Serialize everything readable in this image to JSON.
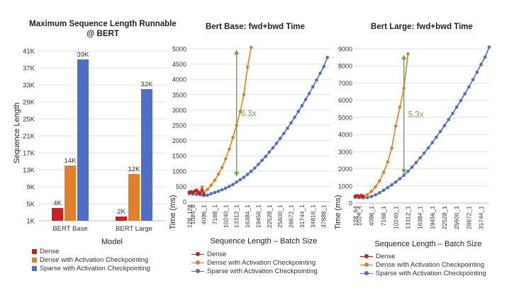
{
  "colors": {
    "dense": "#cc1f1f",
    "dense_ckpt": "#e0802b",
    "sparse_ckpt": "#4f6fc4",
    "speedup": "#6aa84f",
    "grid": "#e2e2e2",
    "text": "#333333"
  },
  "legend": {
    "dense": "Dense",
    "dense_ckpt": "Dense with Activation Checkpointing",
    "sparse_ckpt": "Sparse with Activation Checkpointing"
  },
  "chart_data": [
    {
      "type": "bar",
      "title": "Maximum Sequence Length Runnable @ BERT",
      "xlabel": "Model",
      "ylabel": "Sequence Length",
      "categories": [
        "BERT Base",
        "BERT Large"
      ],
      "ylim": [
        1,
        41
      ],
      "yticks": [
        1,
        5,
        9,
        13,
        17,
        21,
        25,
        29,
        33,
        37,
        41
      ],
      "ytick_labels": [
        "1K",
        "5K",
        "9K",
        "13K",
        "17K",
        "21K",
        "25K",
        "29K",
        "33K",
        "37K",
        "41K"
      ],
      "grid": "horizontal",
      "legend_position": "bottom",
      "series": [
        {
          "name": "Dense",
          "color_key": "dense",
          "values": [
            4,
            2
          ],
          "labels": [
            "4K",
            "2K"
          ]
        },
        {
          "name": "Dense with Activation Checkpointing",
          "color_key": "dense_ckpt",
          "values": [
            14,
            12
          ],
          "labels": [
            "14K",
            "12K"
          ]
        },
        {
          "name": "Sparse with Activation Checkpointing",
          "color_key": "sparse_ckpt",
          "values": [
            39,
            32
          ],
          "labels": [
            "39K",
            "32K"
          ]
        }
      ]
    },
    {
      "type": "line",
      "title": "Bert Base: fwd+bwd Time",
      "xlabel": "Sequence Length – Batch Size",
      "ylabel": "Time (ms)",
      "ylim": [
        0,
        5000
      ],
      "yticks": [
        0,
        500,
        1000,
        1500,
        2000,
        2500,
        3000,
        3500,
        4000,
        4500,
        5000
      ],
      "xtick_labels": [
        "128_128",
        "1024_8",
        "4096_1",
        "7168_1",
        "10240_1",
        "13312_1",
        "16384_1",
        "19456_1",
        "22528_1",
        "25600_1",
        "28672_1",
        "31744_1",
        "34816_1",
        "37888_1"
      ],
      "x_range": [
        0,
        39936
      ],
      "legend_position": "bottom",
      "annotation": {
        "text": "6.3x",
        "x": 13312,
        "y_from": 5000,
        "y_to": 790
      },
      "series": [
        {
          "name": "Dense",
          "color_key": "dense",
          "points": [
            [
              0,
              310
            ],
            [
              512,
              330
            ],
            [
              1024,
              300
            ],
            [
              1536,
              340
            ],
            [
              2048,
              360
            ],
            [
              2560,
              300
            ],
            [
              3072,
              270
            ],
            [
              3584,
              380
            ],
            [
              4096,
              250
            ]
          ]
        },
        {
          "name": "Dense with Activation Checkpointing",
          "color_key": "dense_ckpt",
          "points": [
            [
              0,
              300
            ],
            [
              512,
              320
            ],
            [
              1024,
              300
            ],
            [
              1536,
              350
            ],
            [
              2048,
              390
            ],
            [
              2560,
              320
            ],
            [
              3072,
              290
            ],
            [
              3584,
              480
            ],
            [
              4096,
              300
            ],
            [
              5120,
              400
            ],
            [
              6144,
              540
            ],
            [
              7168,
              700
            ],
            [
              8192,
              900
            ],
            [
              9216,
              1120
            ],
            [
              10240,
              1400
            ],
            [
              11264,
              1720
            ],
            [
              12288,
              2100
            ],
            [
              13312,
              2500
            ],
            [
              14336,
              2950
            ],
            [
              15360,
              3500
            ],
            [
              16384,
              4400
            ],
            [
              17408,
              5050
            ]
          ]
        },
        {
          "name": "Sparse with Activation Checkpointing",
          "color_key": "sparse_ckpt",
          "points": [
            [
              0,
              260
            ],
            [
              1024,
              250
            ],
            [
              2048,
              240
            ],
            [
              3072,
              230
            ],
            [
              4096,
              200
            ],
            [
              5120,
              210
            ],
            [
              6144,
              260
            ],
            [
              7168,
              300
            ],
            [
              8192,
              340
            ],
            [
              9216,
              390
            ],
            [
              10240,
              440
            ],
            [
              11264,
              500
            ],
            [
              12288,
              560
            ],
            [
              13312,
              640
            ],
            [
              14336,
              720
            ],
            [
              15360,
              800
            ],
            [
              16384,
              890
            ],
            [
              17408,
              990
            ],
            [
              18432,
              1100
            ],
            [
              19456,
              1220
            ],
            [
              20480,
              1350
            ],
            [
              21504,
              1480
            ],
            [
              22528,
              1620
            ],
            [
              23552,
              1760
            ],
            [
              24576,
              1910
            ],
            [
              25600,
              2070
            ],
            [
              26624,
              2230
            ],
            [
              27648,
              2400
            ],
            [
              28672,
              2580
            ],
            [
              29696,
              2760
            ],
            [
              30720,
              2950
            ],
            [
              31744,
              3140
            ],
            [
              32768,
              3340
            ],
            [
              33792,
              3540
            ],
            [
              34816,
              3760
            ],
            [
              35840,
              3980
            ],
            [
              36864,
              4200
            ],
            [
              37888,
              4420
            ],
            [
              38912,
              4720
            ]
          ]
        }
      ]
    },
    {
      "type": "line",
      "title": "Bert Large: fwd+bwd Time",
      "xlabel": "Sequence Length – Batch Size",
      "ylabel": "Time (ms)",
      "ylim": [
        0,
        9000
      ],
      "yticks": [
        0,
        1000,
        2000,
        3000,
        4000,
        5000,
        6000,
        7000,
        8000,
        9000
      ],
      "xtick_labels": [
        "128_64",
        "1024_4",
        "4096_1",
        "7168_1",
        "10240_1",
        "13312_1",
        "16384_1",
        "19456_1",
        "22528_1",
        "25600_1",
        "28672_1",
        "31744_1"
      ],
      "x_range": [
        0,
        33792
      ],
      "legend_position": "bottom",
      "annotation": {
        "text": "5.3x",
        "x": 12288,
        "y_from": 8700,
        "y_to": 1650
      },
      "series": [
        {
          "name": "Dense",
          "color_key": "dense",
          "points": [
            [
              0,
              400
            ],
            [
              512,
              420
            ],
            [
              1024,
              390
            ],
            [
              1536,
              430
            ],
            [
              2048,
              380
            ]
          ]
        },
        {
          "name": "Dense with Activation Checkpointing",
          "color_key": "dense_ckpt",
          "points": [
            [
              0,
              420
            ],
            [
              512,
              440
            ],
            [
              1024,
              410
            ],
            [
              1536,
              460
            ],
            [
              2048,
              420
            ],
            [
              3072,
              500
            ],
            [
              4096,
              680
            ],
            [
              5120,
              950
            ],
            [
              6144,
              1300
            ],
            [
              7168,
              1800
            ],
            [
              8192,
              2400
            ],
            [
              9216,
              3200
            ],
            [
              10240,
              4500
            ],
            [
              11264,
              5600
            ],
            [
              12288,
              6700
            ],
            [
              13312,
              8700
            ]
          ]
        },
        {
          "name": "Sparse with Activation Checkpointing",
          "color_key": "sparse_ckpt",
          "points": [
            [
              0,
              330
            ],
            [
              1024,
              320
            ],
            [
              2048,
              310
            ],
            [
              3072,
              320
            ],
            [
              4096,
              380
            ],
            [
              5120,
              480
            ],
            [
              6144,
              600
            ],
            [
              7168,
              750
            ],
            [
              8192,
              900
            ],
            [
              9216,
              1060
            ],
            [
              10240,
              1230
            ],
            [
              11264,
              1420
            ],
            [
              12288,
              1620
            ],
            [
              13312,
              1850
            ],
            [
              14336,
              2100
            ],
            [
              15360,
              2360
            ],
            [
              16384,
              2640
            ],
            [
              17408,
              2920
            ],
            [
              18432,
              3220
            ],
            [
              19456,
              3530
            ],
            [
              20480,
              3850
            ],
            [
              21504,
              4180
            ],
            [
              22528,
              4520
            ],
            [
              23552,
              4870
            ],
            [
              24576,
              5230
            ],
            [
              25600,
              5600
            ],
            [
              26624,
              5980
            ],
            [
              27648,
              6370
            ],
            [
              28672,
              6780
            ],
            [
              29696,
              7200
            ],
            [
              30720,
              7640
            ],
            [
              31744,
              8080
            ],
            [
              32768,
              8520
            ],
            [
              33792,
              9100
            ]
          ]
        }
      ]
    }
  ]
}
